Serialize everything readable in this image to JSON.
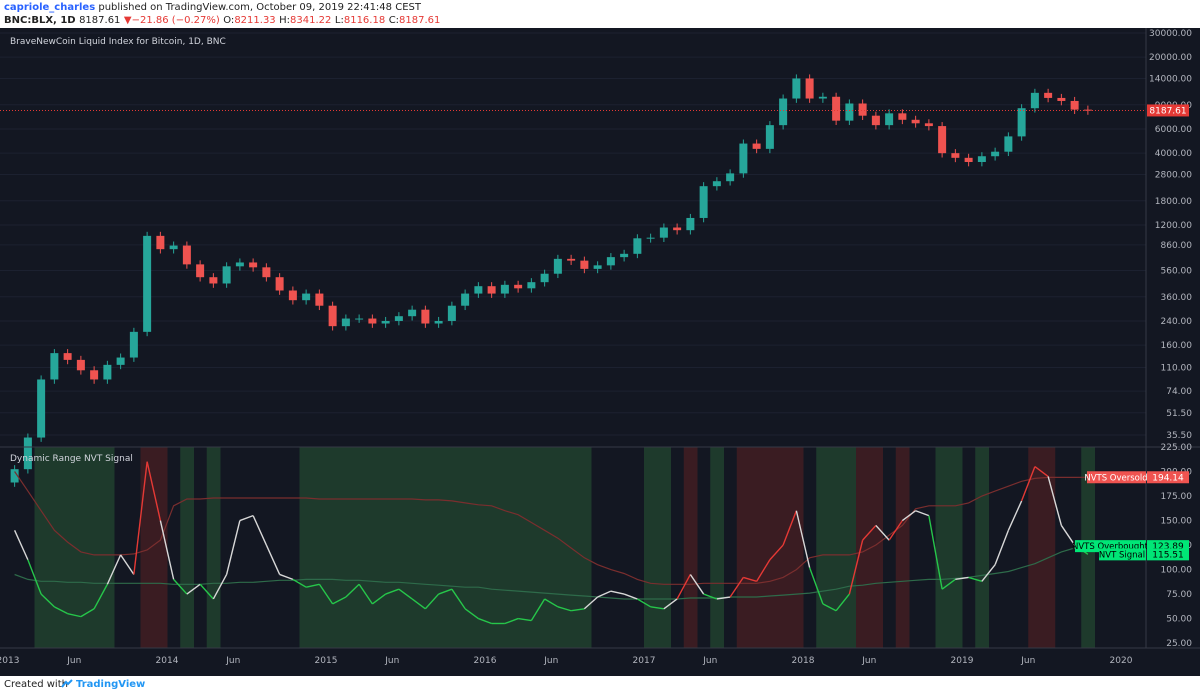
{
  "header": {
    "author": "capriole_charles",
    "published": "published on TradingView.com, October 09, 2019 22:41:48 CEST",
    "symbol": "BNC:BLX, 1D",
    "last": "8187.61",
    "change_arrow": "▼",
    "change": "−21.86 (−0.27%)",
    "o_label": "O:",
    "o": "8211.33",
    "h_label": "H:",
    "h": "8341.22",
    "l_label": "L:",
    "l": "8116.18",
    "c_label": "C:",
    "c": "8187.61"
  },
  "footer": {
    "created": "Created with",
    "brand": "TradingView",
    "logo_icon": "tradingview-logo-icon"
  },
  "colors": {
    "background": "#131722",
    "up": "#26a69a",
    "down": "#ef5350",
    "price_line": "#e53935",
    "nvt_normal": "#d8d8d8",
    "nvt_overbought": "#e53935",
    "nvt_oversold": "#26c64a",
    "band_green": "#1e3a2c",
    "band_red": "#3a1c22"
  },
  "chart_data": [
    {
      "type": "candlestick",
      "title": "BraveNewCoin Liquid Index for Bitcoin, 1D, BNC",
      "y_scale": "log",
      "ylim": [
        30,
        30000
      ],
      "y_ticks": [
        "30000.00",
        "20000.00",
        "14000.00",
        "9000.00",
        "6000.00",
        "4000.00",
        "2800.00",
        "1800.00",
        "1200.00",
        "860.00",
        "560.00",
        "360.00",
        "240.00",
        "160.00",
        "110.00",
        "74.00",
        "51.50",
        "35.50"
      ],
      "last_price_label": "8187.61",
      "last_price": 8187.61,
      "x": [
        "2013-01",
        "2013-02",
        "2013-03",
        "2013-04",
        "2013-05",
        "2013-06",
        "2013-07",
        "2013-08",
        "2013-09",
        "2013-10",
        "2013-11",
        "2013-12",
        "2014-01",
        "2014-02",
        "2014-03",
        "2014-04",
        "2014-05",
        "2014-06",
        "2014-07",
        "2014-08",
        "2014-09",
        "2014-10",
        "2014-11",
        "2014-12",
        "2015-01",
        "2015-02",
        "2015-03",
        "2015-04",
        "2015-05",
        "2015-06",
        "2015-07",
        "2015-08",
        "2015-09",
        "2015-10",
        "2015-11",
        "2015-12",
        "2016-01",
        "2016-02",
        "2016-03",
        "2016-04",
        "2016-05",
        "2016-06",
        "2016-07",
        "2016-08",
        "2016-09",
        "2016-10",
        "2016-11",
        "2016-12",
        "2017-01",
        "2017-02",
        "2017-03",
        "2017-04",
        "2017-05",
        "2017-06",
        "2017-07",
        "2017-08",
        "2017-09",
        "2017-10",
        "2017-11",
        "2017-12",
        "2018-01",
        "2018-02",
        "2018-03",
        "2018-04",
        "2018-05",
        "2018-06",
        "2018-07",
        "2018-08",
        "2018-09",
        "2018-10",
        "2018-11",
        "2018-12",
        "2019-01",
        "2019-02",
        "2019-03",
        "2019-04",
        "2019-05",
        "2019-06",
        "2019-07",
        "2019-08",
        "2019-09",
        "2019-10"
      ],
      "close": [
        20,
        34,
        90,
        140,
        125,
        105,
        90,
        115,
        130,
        200,
        1000,
        800,
        850,
        620,
        500,
        450,
        600,
        640,
        590,
        500,
        400,
        340,
        380,
        310,
        220,
        250,
        250,
        230,
        240,
        260,
        290,
        230,
        240,
        310,
        380,
        430,
        380,
        440,
        415,
        460,
        530,
        680,
        660,
        575,
        610,
        700,
        740,
        960,
        970,
        1150,
        1100,
        1350,
        2300,
        2500,
        2850,
        4700,
        4300,
        6400,
        10000,
        14000,
        10000,
        10300,
        6900,
        9200,
        7500,
        6400,
        7800,
        7000,
        6600,
        6300,
        4000,
        3700,
        3450,
        3800,
        4100,
        5300,
        8500,
        11000,
        10100,
        9600,
        8300,
        8187.61
      ]
    },
    {
      "type": "line",
      "title": "Dynamic Range NVT Signal",
      "ylim": [
        20,
        225
      ],
      "y_ticks": [
        "225.00",
        "200.00",
        "175.00",
        "150.00",
        "125.00",
        "100.00",
        "75.00",
        "50.00",
        "25.00"
      ],
      "x_ticks": [
        "2013",
        "Jun",
        "2014",
        "Jun",
        "2015",
        "Jun",
        "2016",
        "Jun",
        "2017",
        "Jun",
        "2018",
        "Jun",
        "2019",
        "Jun",
        "2020"
      ],
      "labels": {
        "oversold": "NVTS Oversold",
        "oversold_value": "194.14",
        "overbought": "NVTS Overbought",
        "overbought_value": "123.89",
        "signal": "NVT Signal",
        "signal_value": "115.51"
      },
      "x": [
        "2013-01",
        "2013-02",
        "2013-03",
        "2013-04",
        "2013-05",
        "2013-06",
        "2013-07",
        "2013-08",
        "2013-09",
        "2013-10",
        "2013-11",
        "2013-12",
        "2014-01",
        "2014-02",
        "2014-03",
        "2014-04",
        "2014-05",
        "2014-06",
        "2014-07",
        "2014-08",
        "2014-09",
        "2014-10",
        "2014-11",
        "2014-12",
        "2015-01",
        "2015-02",
        "2015-03",
        "2015-04",
        "2015-05",
        "2015-06",
        "2015-07",
        "2015-08",
        "2015-09",
        "2015-10",
        "2015-11",
        "2015-12",
        "2016-01",
        "2016-02",
        "2016-03",
        "2016-04",
        "2016-05",
        "2016-06",
        "2016-07",
        "2016-08",
        "2016-09",
        "2016-10",
        "2016-11",
        "2016-12",
        "2017-01",
        "2017-02",
        "2017-03",
        "2017-04",
        "2017-05",
        "2017-06",
        "2017-07",
        "2017-08",
        "2017-09",
        "2017-10",
        "2017-11",
        "2017-12",
        "2018-01",
        "2018-02",
        "2018-03",
        "2018-04",
        "2018-05",
        "2018-06",
        "2018-07",
        "2018-08",
        "2018-09",
        "2018-10",
        "2018-11",
        "2018-12",
        "2019-01",
        "2019-02",
        "2019-03",
        "2019-04",
        "2019-05",
        "2019-06",
        "2019-07",
        "2019-08",
        "2019-09",
        "2019-10"
      ],
      "nvt_signal": [
        140,
        110,
        75,
        62,
        55,
        52,
        60,
        85,
        115,
        95,
        210,
        150,
        90,
        75,
        85,
        70,
        95,
        150,
        155,
        125,
        95,
        90,
        82,
        85,
        65,
        72,
        85,
        65,
        75,
        80,
        70,
        60,
        75,
        80,
        60,
        50,
        45,
        45,
        50,
        48,
        70,
        62,
        58,
        60,
        72,
        78,
        75,
        70,
        62,
        60,
        70,
        95,
        75,
        70,
        72,
        92,
        88,
        110,
        125,
        160,
        102,
        65,
        58,
        75,
        130,
        145,
        130,
        150,
        160,
        155,
        80,
        90,
        92,
        88,
        105,
        140,
        170,
        205,
        195,
        145,
        125,
        115.51
      ],
      "overbought": [
        95,
        90,
        88,
        88,
        87,
        87,
        86,
        86,
        86,
        86,
        86,
        86,
        85,
        85,
        85,
        86,
        86,
        87,
        87,
        88,
        89,
        89,
        90,
        90,
        90,
        89,
        89,
        88,
        87,
        87,
        86,
        85,
        84,
        83,
        82,
        82,
        80,
        79,
        78,
        77,
        76,
        75,
        74,
        73,
        72,
        71,
        70,
        70,
        70,
        70,
        70,
        71,
        71,
        71,
        72,
        72,
        72,
        73,
        74,
        75,
        76,
        78,
        80,
        83,
        84,
        86,
        87,
        88,
        89,
        90,
        90,
        91,
        92,
        94,
        96,
        98,
        102,
        106,
        112,
        118,
        122,
        123.89
      ],
      "oversold": [
        200,
        180,
        160,
        140,
        128,
        118,
        115,
        115,
        115,
        116,
        120,
        130,
        165,
        172,
        172,
        173,
        173,
        173,
        173,
        173,
        173,
        173,
        173,
        172,
        172,
        172,
        172,
        172,
        172,
        172,
        172,
        171,
        171,
        170,
        168,
        166,
        165,
        160,
        156,
        148,
        140,
        132,
        122,
        112,
        105,
        100,
        96,
        90,
        86,
        85,
        85,
        85,
        86,
        86,
        86,
        86,
        86,
        88,
        92,
        100,
        112,
        115,
        115,
        115,
        118,
        125,
        135,
        145,
        162,
        165,
        165,
        165,
        168,
        175,
        180,
        185,
        190,
        193,
        194,
        194,
        194,
        194.14
      ]
    }
  ]
}
